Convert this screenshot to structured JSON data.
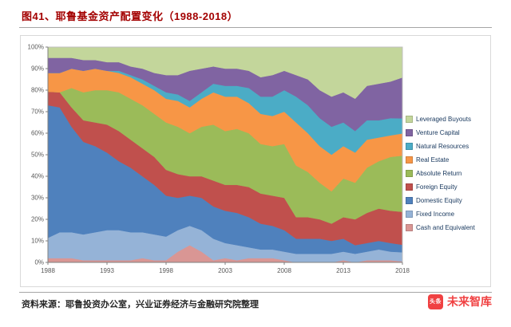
{
  "header": {
    "title": "图41、耶鲁基金资产配置变化（1988-2018）"
  },
  "footer": {
    "source": "资料来源：耶鲁投资办公室，兴业证券经济与金融研究院整理",
    "brand": {
      "logo_text": "头条",
      "name": "未来智库"
    }
  },
  "chart_data": {
    "type": "area",
    "stacked": true,
    "title": "",
    "xlabel": "",
    "ylabel": "",
    "ylim": [
      0,
      100
    ],
    "grid": false,
    "legend_position": "right",
    "x": [
      1988,
      1989,
      1990,
      1991,
      1992,
      1993,
      1994,
      1995,
      1996,
      1997,
      1998,
      1999,
      2000,
      2001,
      2002,
      2003,
      2004,
      2005,
      2006,
      2007,
      2008,
      2009,
      2010,
      2011,
      2012,
      2013,
      2014,
      2015,
      2016,
      2017,
      2018
    ],
    "x_tick_labels": [
      "1988",
      "1993",
      "1998",
      "2003",
      "2008",
      "2013",
      "2018"
    ],
    "x_ticks": [
      1988,
      1993,
      1998,
      2003,
      2008,
      2013,
      2018
    ],
    "y_tick_labels": [
      "0%",
      "10%",
      "20%",
      "30%",
      "40%",
      "50%",
      "60%",
      "70%",
      "80%",
      "90%",
      "100%"
    ],
    "series": [
      {
        "name": "Cash and Equivalent",
        "color": "#d99694",
        "values": [
          2,
          2,
          2,
          1,
          1,
          1,
          1,
          1,
          2,
          1,
          1,
          5,
          8,
          5,
          1,
          2,
          1,
          2,
          2,
          2,
          1,
          0,
          0,
          0,
          0,
          1,
          0,
          1,
          1,
          1,
          0.5
        ]
      },
      {
        "name": "Fixed Income",
        "color": "#95b3d7",
        "values": [
          9.4,
          12,
          12,
          12,
          13,
          14,
          14,
          13,
          12,
          12,
          11,
          10,
          9,
          10,
          10,
          7,
          7,
          5,
          4,
          4,
          4,
          4,
          4,
          4,
          4,
          4,
          4,
          4,
          5,
          4,
          4.2
        ]
      },
      {
        "name": "Domestic Equity",
        "color": "#4f81bd",
        "values": [
          61.6,
          58,
          49,
          43,
          40,
          36,
          32,
          30,
          26,
          23,
          19,
          15,
          14,
          15,
          15,
          15,
          15,
          14,
          12,
          11,
          10,
          7,
          7,
          7,
          6,
          6,
          4,
          4,
          4,
          4,
          3.5
        ]
      },
      {
        "name": "Foreign Equity",
        "color": "#c0504d",
        "values": [
          6.3,
          7,
          9,
          10,
          11,
          13,
          14,
          13,
          13,
          13,
          12,
          11,
          9,
          10,
          12,
          12,
          13,
          14,
          14,
          14,
          15,
          10,
          10,
          9,
          8,
          10,
          12,
          14,
          15,
          15,
          15.3
        ]
      },
      {
        "name": "Absolute Return",
        "color": "#9bbb59",
        "values": [
          0,
          0,
          9,
          13,
          15,
          16,
          18,
          19,
          20,
          20,
          22,
          22,
          20,
          23,
          26,
          25,
          26,
          25,
          23,
          23,
          25,
          24,
          21,
          17,
          15,
          18,
          17,
          21,
          22,
          25,
          26.1
        ]
      },
      {
        "name": "Real Estate",
        "color": "#f79646",
        "values": [
          8.7,
          9,
          9,
          10,
          10,
          9,
          9,
          10,
          10,
          11,
          11,
          12,
          12,
          13,
          15,
          16,
          15,
          14,
          14,
          14,
          15,
          20,
          18,
          17,
          17,
          15,
          14,
          13,
          11,
          10,
          10.3
        ]
      },
      {
        "name": "Natural Resources",
        "color": "#4bacc6",
        "values": [
          0,
          0,
          0,
          0,
          0,
          0,
          1,
          1,
          2,
          2,
          3,
          3,
          3,
          3,
          4,
          5,
          5,
          7,
          8,
          9,
          10,
          12,
          13,
          13,
          13,
          11,
          10,
          9,
          8,
          8,
          7
        ]
      },
      {
        "name": "Venture Capital",
        "color": "#8064a2",
        "values": [
          7,
          7,
          5,
          5,
          4,
          4,
          4,
          4,
          5,
          6,
          8,
          9,
          14,
          11,
          8,
          8,
          8,
          8,
          9,
          10,
          9,
          10,
          12,
          13,
          14,
          14,
          15,
          16,
          17,
          17,
          19
        ]
      },
      {
        "name": "Leveraged Buyouts",
        "color": "#c3d69b",
        "values": [
          5,
          5,
          5,
          6,
          6,
          7,
          7,
          9,
          10,
          12,
          13,
          13,
          11,
          10,
          9,
          10,
          10,
          11,
          14,
          13,
          11,
          13,
          15,
          20,
          23,
          21,
          24,
          18,
          17,
          16,
          14.1
        ]
      }
    ],
    "legend": [
      "Leveraged Buyouts",
      "Venture Capital",
      "Natural Resources",
      "Real Estate",
      "Absolute Return",
      "Foreign Equity",
      "Domestic Equity",
      "Fixed Income",
      "Cash and Equivalent"
    ]
  }
}
